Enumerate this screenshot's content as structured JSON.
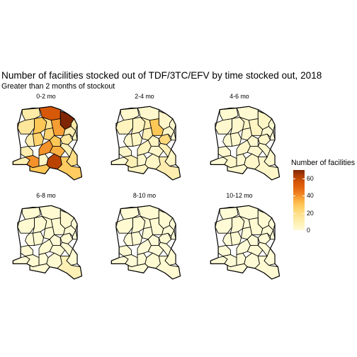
{
  "title": "Number of facilities stocked out of TDF/3TC/EFV by time stocked out, 2018",
  "subtitle": "Greater than 2 months of stockout",
  "legend": {
    "title": "Number of facilities",
    "ticks": [
      "60",
      "40",
      "20",
      "0"
    ],
    "scale_min": 0,
    "scale_max": 70,
    "low_color": "#fffbd6",
    "high_color": "#7f2704"
  },
  "panels": [
    {
      "label": "0-2 mo",
      "values": [
        8,
        40,
        4,
        10,
        25,
        55,
        70,
        12,
        15,
        10,
        30,
        18,
        25,
        38,
        40,
        30,
        62,
        35,
        15,
        8,
        10,
        12,
        5,
        20,
        28,
        30
      ]
    },
    {
      "label": "2-4 mo",
      "values": [
        0,
        8,
        2,
        3,
        4,
        2,
        3,
        2,
        6,
        3,
        5,
        10,
        8,
        30,
        6,
        5,
        4,
        3,
        22,
        8,
        3,
        2,
        1,
        4,
        10,
        5
      ]
    },
    {
      "label": "4-6 mo",
      "values": [
        0,
        3,
        1,
        2,
        2,
        1,
        4,
        1,
        2,
        1,
        2,
        4,
        2,
        5,
        3,
        2,
        3,
        2,
        3,
        2,
        1,
        1,
        0,
        2,
        3,
        2
      ]
    },
    {
      "label": "6-8 mo",
      "values": [
        0,
        1,
        0,
        1,
        1,
        1,
        2,
        1,
        1,
        0,
        1,
        1,
        1,
        1,
        1,
        0,
        1,
        1,
        1,
        1,
        0,
        0,
        0,
        1,
        8,
        1
      ]
    },
    {
      "label": "8-10 mo",
      "values": [
        0,
        0,
        0,
        1,
        0,
        1,
        1,
        0,
        1,
        0,
        1,
        1,
        0,
        1,
        0,
        0,
        1,
        0,
        1,
        0,
        0,
        0,
        0,
        1,
        1,
        0
      ]
    },
    {
      "label": "10-12 mo",
      "values": [
        0,
        0,
        0,
        0,
        1,
        0,
        1,
        0,
        0,
        0,
        1,
        0,
        0,
        1,
        0,
        0,
        0,
        1,
        0,
        0,
        0,
        0,
        0,
        0,
        1,
        0
      ]
    }
  ]
}
